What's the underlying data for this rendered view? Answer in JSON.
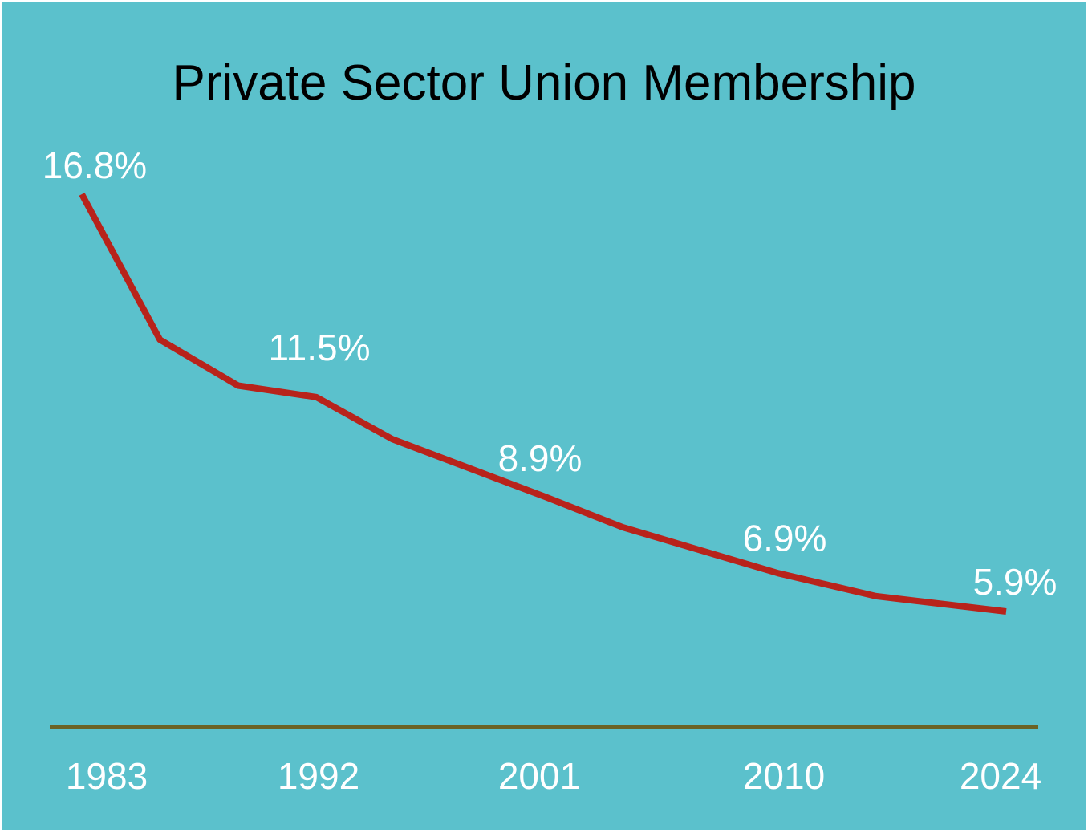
{
  "chart_data": {
    "type": "line",
    "title": "Private Sector Union Membership",
    "xlabel": "",
    "ylabel": "",
    "y_unit": "%",
    "x_ticks": [
      {
        "value": 1983,
        "label": "1983"
      },
      {
        "value": 1992,
        "label": "1992"
      },
      {
        "value": 2001,
        "label": "2001"
      },
      {
        "value": 2010,
        "label": "2010"
      },
      {
        "value": 2024,
        "label": "2024"
      }
    ],
    "series": [
      {
        "points": [
          {
            "x": 1983,
            "y": 16.8
          },
          {
            "x": 1986,
            "y": 13.0
          },
          {
            "x": 1989,
            "y": 11.8
          },
          {
            "x": 1992,
            "y": 11.5
          },
          {
            "x": 1995,
            "y": 10.4
          },
          {
            "x": 2001,
            "y": 8.9
          },
          {
            "x": 2004,
            "y": 8.1
          },
          {
            "x": 2007,
            "y": 7.5
          },
          {
            "x": 2010,
            "y": 6.9
          },
          {
            "x": 2016,
            "y": 6.3
          },
          {
            "x": 2024,
            "y": 5.9
          }
        ]
      }
    ],
    "data_labels": [
      {
        "x": 1983,
        "y": 16.8,
        "text": "16.8%"
      },
      {
        "x": 1992,
        "y": 11.5,
        "text": "11.5%"
      },
      {
        "x": 2001,
        "y": 8.9,
        "text": "8.9%"
      },
      {
        "x": 2010,
        "y": 6.9,
        "text": "6.9%"
      },
      {
        "x": 2024,
        "y": 5.9,
        "text": "5.9%"
      }
    ],
    "ylim": [
      0,
      18.5
    ],
    "grid": false,
    "legend": "none",
    "colors": {
      "background": "#5bc1cc",
      "line": "#b8231b",
      "axis": "#6b6325",
      "title": "#000000",
      "labels": "#ffffff"
    }
  }
}
